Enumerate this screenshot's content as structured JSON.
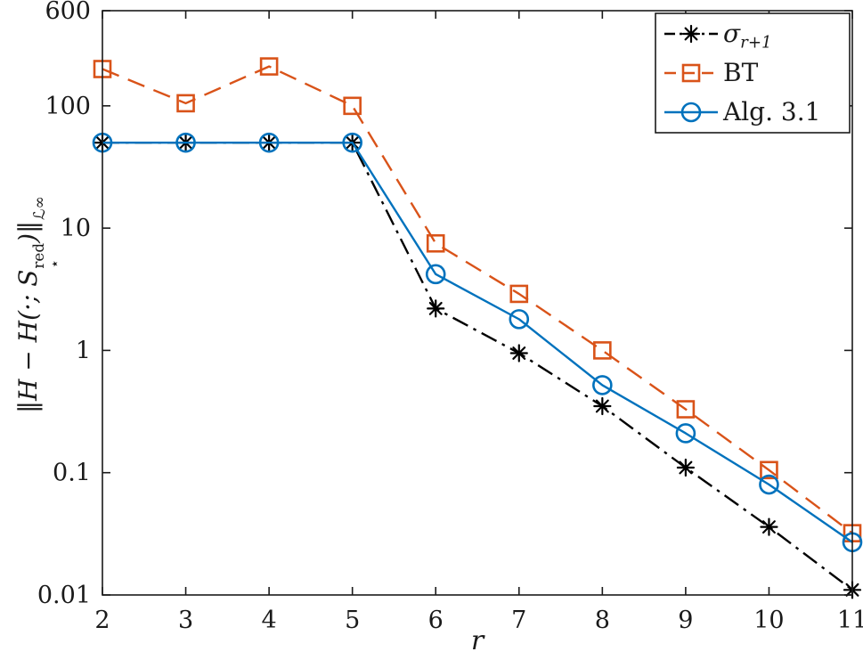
{
  "figure": {
    "xlabel": "r",
    "ylabel": {
      "pre": "‖H − H(·; S",
      "sup": "red",
      "sub": "⋆",
      "post": ")‖",
      "norm_sub": "ℒ∞"
    }
  },
  "legend": {
    "position": "top-right",
    "entries": [
      {
        "label_base": "σ",
        "label_sub": "r+1"
      },
      {
        "label": "BT"
      },
      {
        "label": "Alg. 3.1"
      }
    ]
  },
  "chart_data": {
    "type": "line",
    "title": "",
    "xlabel": "r",
    "ylabel": "‖H − H(·; S⋆red)‖L∞",
    "x_scale": "linear",
    "y_scale": "log",
    "xlim": [
      2,
      11
    ],
    "ylim": [
      0.01,
      600
    ],
    "x_ticks": [
      2,
      3,
      4,
      5,
      6,
      7,
      8,
      9,
      10,
      11
    ],
    "y_ticks": [
      0.01,
      0.1,
      1,
      10,
      100,
      600
    ],
    "y_tick_labels": [
      "0.01",
      "0.1",
      "1",
      "10",
      "100",
      "600"
    ],
    "grid": false,
    "legend_position": "top-right",
    "x": [
      2,
      3,
      4,
      5,
      6,
      7,
      8,
      9,
      10,
      11
    ],
    "series": [
      {
        "name": "sigma_r+1",
        "color": "#000000",
        "line_style": "dashdot",
        "marker": "asterisk",
        "values": [
          50,
          50,
          50,
          50,
          2.2,
          0.95,
          0.35,
          0.11,
          0.036,
          0.011
        ]
      },
      {
        "name": "BT",
        "color": "#D95319",
        "line_style": "dashed",
        "marker": "square",
        "values": [
          200,
          105,
          210,
          100,
          7.5,
          2.9,
          1.0,
          0.33,
          0.105,
          0.032
        ]
      },
      {
        "name": "Alg. 3.1",
        "color": "#0072BD",
        "line_style": "solid",
        "marker": "circle",
        "values": [
          50,
          50,
          50,
          50,
          4.2,
          1.8,
          0.52,
          0.21,
          0.08,
          0.027
        ]
      }
    ]
  }
}
